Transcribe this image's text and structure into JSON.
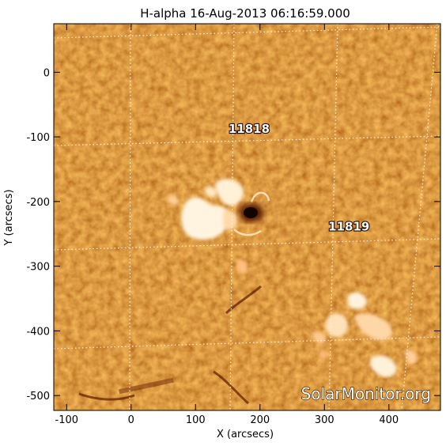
{
  "title": "H-alpha 16-Aug-2013 06:16:59.000",
  "x_axis": {
    "label": "X (arcsecs)",
    "ticks": [
      "-100",
      "0",
      "100",
      "200",
      "300",
      "400"
    ],
    "tick_values": [
      -100,
      0,
      100,
      200,
      300,
      400
    ],
    "range": [
      -120,
      480
    ]
  },
  "y_axis": {
    "label": "Y (arcsecs)",
    "ticks": [
      "0",
      "-100",
      "-200",
      "-300",
      "-400",
      "-500"
    ],
    "tick_values": [
      0,
      -100,
      -200,
      -300,
      -400,
      -500
    ],
    "range": [
      -523,
      75
    ]
  },
  "active_regions": [
    {
      "label": "11818",
      "x": 183,
      "y": -94
    },
    {
      "label": "11819",
      "x": 338,
      "y": -245
    }
  ],
  "watermark": "SolarMonitor.org",
  "colors": {
    "background": "#c94f0b",
    "plage": "#fff6e6",
    "sunspot": "#1a0500",
    "grid": "#ffe9d6"
  }
}
